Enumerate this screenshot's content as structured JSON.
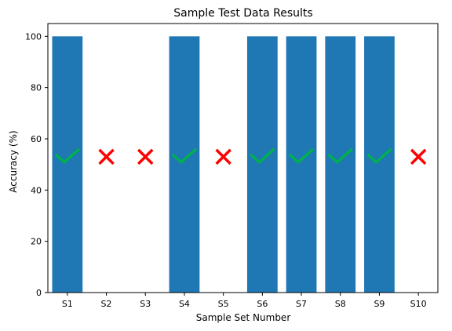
{
  "chart_data": {
    "type": "bar",
    "title": "Sample Test Data Results",
    "xlabel": "Sample Set Number",
    "ylabel": "Accuracy (%)",
    "categories": [
      "S1",
      "S2",
      "S3",
      "S4",
      "S5",
      "S6",
      "S7",
      "S8",
      "S9",
      "S10"
    ],
    "values": [
      100,
      0,
      0,
      100,
      0,
      100,
      100,
      100,
      100,
      0
    ],
    "markers": [
      "check",
      "cross",
      "cross",
      "check",
      "cross",
      "check",
      "check",
      "check",
      "check",
      "cross"
    ],
    "marker_y": 53,
    "ylim": [
      0,
      105
    ],
    "yticks": [
      0,
      20,
      40,
      60,
      80,
      100
    ],
    "grid": false,
    "colors": {
      "bar": "#1f77b4",
      "check": "#00b050",
      "cross": "#ff0000",
      "axis": "#000000"
    }
  }
}
